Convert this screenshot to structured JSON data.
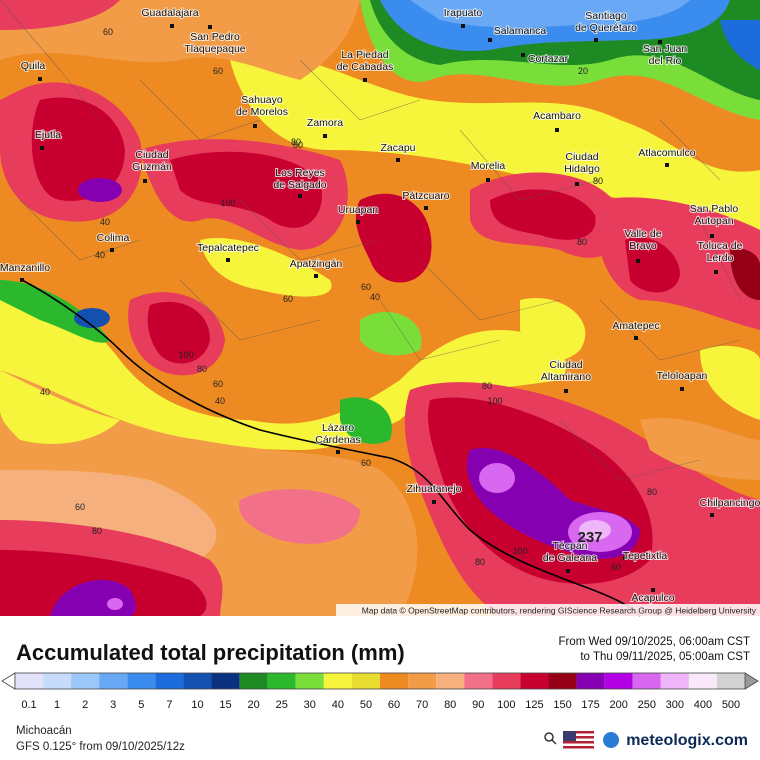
{
  "map": {
    "cities": [
      [
        "Guadalajara"
      ],
      [
        "San Pedro",
        "Tlaquepaque"
      ],
      [
        "Irapuato"
      ],
      [
        "Salamanca"
      ],
      [
        "Santiago",
        "de Querétaro"
      ],
      [
        "Cortazar"
      ],
      [
        "San Juan",
        "del Rio"
      ],
      [
        "Quila"
      ],
      [
        "La Piedad",
        "de Cabadas"
      ],
      [
        "Sahuayo",
        "de Morelos"
      ],
      [
        "Zamora"
      ],
      [
        "Acambaro"
      ],
      [
        "Ejutla"
      ],
      [
        "Ciudad",
        "Guzmán"
      ],
      [
        "Zacapu"
      ],
      [
        "Morelia"
      ],
      [
        "Ciudad",
        "Hidalgo"
      ],
      [
        "Atlacomulco"
      ],
      [
        "Los Reyes",
        "de Salgado"
      ],
      [
        "Uruapan"
      ],
      [
        "Pátzcuaro"
      ],
      [
        "San Pablo",
        "Autopan"
      ],
      [
        "Colima"
      ],
      [
        "Tepalcatepec"
      ],
      [
        "Valle de",
        "Bravo"
      ],
      [
        "Toluca de",
        "Lerdo"
      ],
      [
        "Apatzingán"
      ],
      [
        "Manzanillo"
      ],
      [
        "Amatepec"
      ],
      [
        "Ciudad",
        "Altamirano"
      ],
      [
        "Teloloapan"
      ],
      [
        "Lázaro",
        "Cárdenas"
      ],
      [
        "Zihuatanejo"
      ],
      [
        "Chilpancingo"
      ],
      [
        "Técpan",
        "de Galeana"
      ],
      [
        "Tepetixtla"
      ],
      [
        "Acapulco"
      ]
    ],
    "contour_labels": [
      "60",
      "60",
      "20",
      "80",
      "40",
      "40",
      "100",
      "80",
      "60",
      "40",
      "60",
      "80",
      "60",
      "40",
      "80",
      "60",
      "100",
      "80",
      "40",
      "60",
      "80",
      "80",
      "100",
      "100",
      "80",
      "60",
      "80"
    ],
    "max_label": "237",
    "attribution": "Map data © OpenStreetMap contributors, rendering GIScience Research Group @ Heidelberg University"
  },
  "legend": {
    "title": "Accumulated total precipitation (mm)",
    "period_from": "From Wed 09/10/2025, 06:00am CST",
    "period_to": "to Thu 09/11/2025, 05:00am CST",
    "scale": [
      {
        "label": "0.1",
        "color": "#e2e2f8"
      },
      {
        "label": "1",
        "color": "#c6dcfa"
      },
      {
        "label": "2",
        "color": "#9ac6f8"
      },
      {
        "label": "3",
        "color": "#68a8f4"
      },
      {
        "label": "5",
        "color": "#3a8cee"
      },
      {
        "label": "7",
        "color": "#1c6cdc"
      },
      {
        "label": "10",
        "color": "#1450b0"
      },
      {
        "label": "15",
        "color": "#0a3080"
      },
      {
        "label": "20",
        "color": "#1e8a24"
      },
      {
        "label": "25",
        "color": "#2cb82c"
      },
      {
        "label": "30",
        "color": "#7ade3a"
      },
      {
        "label": "40",
        "color": "#f6f53c"
      },
      {
        "label": "50",
        "color": "#e8dc30"
      },
      {
        "label": "60",
        "color": "#ee8a22"
      },
      {
        "label": "70",
        "color": "#f29c48"
      },
      {
        "label": "80",
        "color": "#f6b07e"
      },
      {
        "label": "90",
        "color": "#f27088"
      },
      {
        "label": "100",
        "color": "#e83c5c"
      },
      {
        "label": "125",
        "color": "#c80030"
      },
      {
        "label": "150",
        "color": "#960016"
      },
      {
        "label": "175",
        "color": "#8400b0"
      },
      {
        "label": "200",
        "color": "#b400e4"
      },
      {
        "label": "250",
        "color": "#d868f0"
      },
      {
        "label": "300",
        "color": "#eeb6f8"
      },
      {
        "label": "400",
        "color": "#f8e8fa"
      },
      {
        "label": "500",
        "color": "#d2d2d2"
      }
    ]
  },
  "footer": {
    "region": "Michoacán",
    "model": "GFS 0.125° from  09/10/2025/12z",
    "brand": "meteologix.com"
  }
}
